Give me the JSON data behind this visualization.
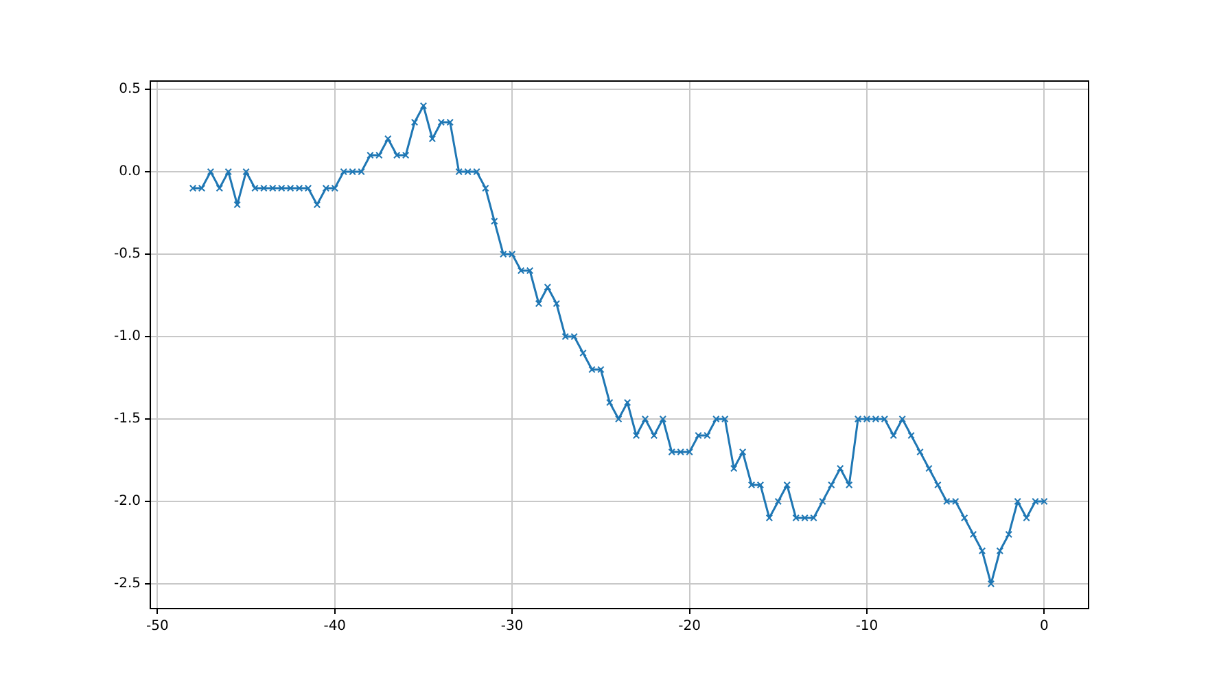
{
  "chart_data": {
    "type": "line",
    "x": [
      -48,
      -47.5,
      -47,
      -46.5,
      -46,
      -45.5,
      -45,
      -44.5,
      -44,
      -43.5,
      -43,
      -42.5,
      -42,
      -41.5,
      -41,
      -40.5,
      -40,
      -39.5,
      -39,
      -38.5,
      -38,
      -37.5,
      -37,
      -36.5,
      -36,
      -35.5,
      -35,
      -34.5,
      -34,
      -33.5,
      -33,
      -32.5,
      -32,
      -31.5,
      -31,
      -30.5,
      -30,
      -29.5,
      -29,
      -28.5,
      -28,
      -27.5,
      -27,
      -26.5,
      -26,
      -25.5,
      -25,
      -24.5,
      -24,
      -23.5,
      -23,
      -22.5,
      -22,
      -21.5,
      -21,
      -20.5,
      -20,
      -19.5,
      -19,
      -18.5,
      -18,
      -17.5,
      -17,
      -16.5,
      -16,
      -15.5,
      -15,
      -14.5,
      -14,
      -13.5,
      -13,
      -12.5,
      -12,
      -11.5,
      -11,
      -10.5,
      -10,
      -9.5,
      -9,
      -8.5,
      -8,
      -7.5,
      -7,
      -6.5,
      -6,
      -5.5,
      -5,
      -4.5,
      -4,
      -3.5,
      -3,
      -2.5,
      -2,
      -1.5,
      -1,
      -0.5,
      0
    ],
    "series": [
      {
        "color": "#1f77b4",
        "values": [
          -0.1,
          -0.1,
          0,
          -0.1,
          0,
          -0.2,
          0,
          -0.1,
          -0.1,
          -0.1,
          -0.1,
          -0.1,
          -0.1,
          -0.1,
          -0.2,
          -0.1,
          -0.1,
          0,
          0,
          0,
          0.1,
          0.1,
          0.2,
          0.1,
          0.1,
          0.3,
          0.4,
          0.2,
          0.3,
          0.3,
          0,
          0,
          0,
          -0.1,
          -0.3,
          -0.5,
          -0.5,
          -0.6,
          -0.6,
          -0.8,
          -0.7,
          -0.8,
          -1.0,
          -1.0,
          -1.1,
          -1.2,
          -1.2,
          -1.4,
          -1.5,
          -1.4,
          -1.6,
          -1.5,
          -1.6,
          -1.5,
          -1.7,
          -1.7,
          -1.7,
          -1.6,
          -1.6,
          -1.5,
          -1.5,
          -1.8,
          -1.7,
          -1.9,
          -1.9,
          -2.1,
          -2.0,
          -1.9,
          -2.1,
          -2.1,
          -2.1,
          -2.0,
          -1.9,
          -1.8,
          -1.9,
          -1.5,
          -1.5,
          -1.5,
          -1.5,
          -1.6,
          -1.5,
          -1.6,
          -1.7,
          -1.8,
          -1.9,
          -2.0,
          -2.0,
          -2.1,
          -2.2,
          -2.3,
          -2.5,
          -2.3,
          -2.2,
          -2.0,
          -2.1,
          -2.0,
          -2.0
        ]
      }
    ],
    "xlim": [
      -50.4,
      2.5
    ],
    "xticks": [
      -50,
      -40,
      -30,
      -20,
      -10,
      0
    ],
    "ylim": [
      -2.65,
      0.55
    ],
    "yticks": [
      {
        "value": -2.5,
        "label": "-2.5"
      },
      {
        "value": -2.0,
        "label": "-2.0"
      },
      {
        "value": -1.5,
        "label": "-1.5"
      },
      {
        "value": -1.0,
        "label": "-1.0"
      },
      {
        "value": -0.5,
        "label": "-0.5"
      },
      {
        "value": 0,
        "label": "0.0"
      },
      {
        "value": 0.5,
        "label": "0.5"
      }
    ],
    "grid": true,
    "marker": "cross",
    "line_style": "solid",
    "legend": false
  }
}
